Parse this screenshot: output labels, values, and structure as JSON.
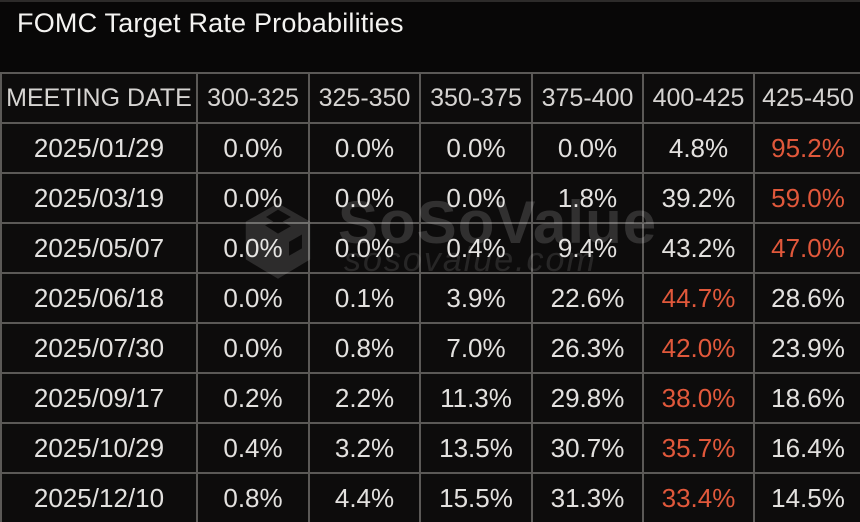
{
  "title": "FOMC Target Rate Probabilities",
  "watermark": {
    "brand": "SoSoValue",
    "domain": "sosovalue.com",
    "logo": "cube-logo-icon"
  },
  "colors": {
    "background": "#080707",
    "cell_background": "#0d0c0c",
    "border": "#5b5957",
    "text": "#e3e1df",
    "header_text": "#d6d4d2",
    "highlight": "#e1583b"
  },
  "table": {
    "columns": [
      "MEETING DATE",
      "300-325",
      "325-350",
      "350-375",
      "375-400",
      "400-425",
      "425-450"
    ],
    "rows": [
      {
        "date": "2025/01/29",
        "values": [
          "0.0%",
          "0.0%",
          "0.0%",
          "0.0%",
          "4.8%",
          "95.2%"
        ],
        "highlight_index": 5
      },
      {
        "date": "2025/03/19",
        "values": [
          "0.0%",
          "0.0%",
          "0.0%",
          "1.8%",
          "39.2%",
          "59.0%"
        ],
        "highlight_index": 5
      },
      {
        "date": "2025/05/07",
        "values": [
          "0.0%",
          "0.0%",
          "0.4%",
          "9.4%",
          "43.2%",
          "47.0%"
        ],
        "highlight_index": 5
      },
      {
        "date": "2025/06/18",
        "values": [
          "0.0%",
          "0.1%",
          "3.9%",
          "22.6%",
          "44.7%",
          "28.6%"
        ],
        "highlight_index": 4
      },
      {
        "date": "2025/07/30",
        "values": [
          "0.0%",
          "0.8%",
          "7.0%",
          "26.3%",
          "42.0%",
          "23.9%"
        ],
        "highlight_index": 4
      },
      {
        "date": "2025/09/17",
        "values": [
          "0.2%",
          "2.2%",
          "11.3%",
          "29.8%",
          "38.0%",
          "18.6%"
        ],
        "highlight_index": 4
      },
      {
        "date": "2025/10/29",
        "values": [
          "0.4%",
          "3.2%",
          "13.5%",
          "30.7%",
          "35.7%",
          "16.4%"
        ],
        "highlight_index": 4
      },
      {
        "date": "2025/12/10",
        "values": [
          "0.8%",
          "4.4%",
          "15.5%",
          "31.3%",
          "33.4%",
          "14.5%"
        ],
        "highlight_index": 4
      }
    ]
  },
  "chart_data": {
    "type": "table",
    "title": "FOMC Target Rate Probabilities",
    "columns": [
      "MEETING DATE",
      "300-325",
      "325-350",
      "350-375",
      "375-400",
      "400-425",
      "425-450"
    ],
    "rows": [
      [
        "2025/01/29",
        "0.0%",
        "0.0%",
        "0.0%",
        "0.0%",
        "4.8%",
        "95.2%"
      ],
      [
        "2025/03/19",
        "0.0%",
        "0.0%",
        "0.0%",
        "1.8%",
        "39.2%",
        "59.0%"
      ],
      [
        "2025/05/07",
        "0.0%",
        "0.0%",
        "0.4%",
        "9.4%",
        "43.2%",
        "47.0%"
      ],
      [
        "2025/06/18",
        "0.0%",
        "0.1%",
        "3.9%",
        "22.6%",
        "44.7%",
        "28.6%"
      ],
      [
        "2025/07/30",
        "0.0%",
        "0.8%",
        "7.0%",
        "26.3%",
        "42.0%",
        "23.9%"
      ],
      [
        "2025/09/17",
        "0.2%",
        "2.2%",
        "11.3%",
        "29.8%",
        "38.0%",
        "18.6%"
      ],
      [
        "2025/10/29",
        "0.4%",
        "3.2%",
        "13.5%",
        "30.7%",
        "35.7%",
        "16.4%"
      ],
      [
        "2025/12/10",
        "0.8%",
        "4.4%",
        "15.5%",
        "31.3%",
        "33.4%",
        "14.5%"
      ]
    ],
    "highlighted_max_per_row": [
      "95.2%",
      "59.0%",
      "47.0%",
      "44.7%",
      "42.0%",
      "38.0%",
      "35.7%",
      "33.4%"
    ],
    "highlight_color": "#e1583b"
  }
}
